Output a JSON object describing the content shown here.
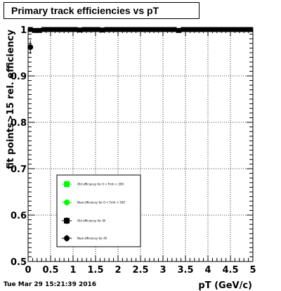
{
  "title": "Primary track efficiencies vs pT",
  "timestamp": "Tue Mar 29 15:21:39 2016",
  "chart_data": {
    "type": "scatter",
    "xlabel": "pT (GeV/c)",
    "ylabel": "fit points>15 rel. efficiency",
    "xlim": [
      0,
      5
    ],
    "ylim": [
      0.5,
      1.0
    ],
    "x_ticks": [
      0,
      0.5,
      1,
      1.5,
      2,
      2.5,
      3,
      3.5,
      4,
      4.5,
      5
    ],
    "x_tick_labels": [
      "0",
      "0.5",
      "1",
      "1.5",
      "2",
      "2.5",
      "3",
      "3.5",
      "4",
      "4.5",
      "5"
    ],
    "y_ticks": [
      0.5,
      0.6,
      0.7,
      0.8,
      0.9,
      1.0
    ],
    "y_tick_labels": [
      "0.5",
      "0.6",
      "0.7",
      "0.8",
      "0.9",
      "1"
    ],
    "grid": true,
    "legend_position": "lower-center",
    "colors": {
      "old_fmh": "#00ff00",
      "new_fmh": "#00ff00",
      "old_all": "#000000",
      "new_all": "#000000"
    },
    "series": [
      {
        "name": "Old efficiency for 0 < Fmh < 200",
        "marker": "square",
        "color": "#00ff00",
        "x": [],
        "y": []
      },
      {
        "name": "New efficiency for 0 < Fmh < 200",
        "marker": "circle",
        "color": "#00ff00",
        "x": [],
        "y": []
      },
      {
        "name": "Old efficiency for All",
        "marker": "square",
        "color": "#000000",
        "x": [
          0.05,
          0.15,
          0.25,
          0.35,
          0.45,
          0.55,
          0.65,
          0.75,
          0.85,
          0.95,
          1.05,
          1.15,
          1.25,
          1.35,
          1.45,
          1.55,
          1.65,
          1.75,
          1.85,
          1.95,
          2.05,
          2.15,
          2.25,
          2.35,
          2.45,
          2.55,
          2.65,
          2.75,
          2.85,
          2.95,
          3.05,
          3.15,
          3.25,
          3.35,
          3.45,
          3.55,
          3.65,
          3.75,
          3.85,
          3.95,
          4.05,
          4.15,
          4.25,
          4.35,
          4.45,
          4.55,
          4.65,
          4.75,
          4.85,
          4.95
        ],
        "y": [
          1.0,
          0.998,
          0.998,
          1.0,
          1.0,
          1.0,
          1.0,
          1.0,
          1.0,
          1.0,
          1.0,
          0.999,
          1.0,
          1.0,
          1.0,
          1.0,
          0.999,
          1.0,
          1.0,
          1.0,
          1.0,
          1.0,
          1.0,
          1.0,
          1.0,
          1.0,
          1.0,
          1.0,
          1.0,
          1.0,
          1.0,
          1.0,
          1.0,
          0.998,
          1.0,
          1.0,
          1.0,
          1.0,
          1.0,
          1.0,
          1.0,
          1.0,
          1.0,
          1.0,
          1.0,
          1.0,
          1.0,
          1.0,
          1.0,
          1.0
        ],
        "yerr": [
          0.002,
          0.002,
          0.002,
          0.0,
          0.0,
          0.0,
          0.0,
          0.0,
          0.0,
          0.0,
          0.0,
          0.001,
          0.0,
          0.0,
          0.0,
          0.0,
          0.001,
          0.0,
          0.0,
          0.0,
          0.0,
          0.0,
          0.0,
          0.0,
          0.0,
          0.0,
          0.0,
          0.0,
          0.0,
          0.0,
          0.0,
          0.0,
          0.0,
          0.002,
          0.0,
          0.0,
          0.0,
          0.0,
          0.0,
          0.0,
          0.0,
          0.0,
          0.0,
          0.0,
          0.0,
          0.0,
          0.0,
          0.0,
          0.0,
          0.0
        ]
      },
      {
        "name": "New efficiency for All",
        "marker": "circle",
        "color": "#000000",
        "x": [
          0.05
        ],
        "y": [
          0.962
        ],
        "yerr": [
          0.015
        ]
      }
    ]
  }
}
